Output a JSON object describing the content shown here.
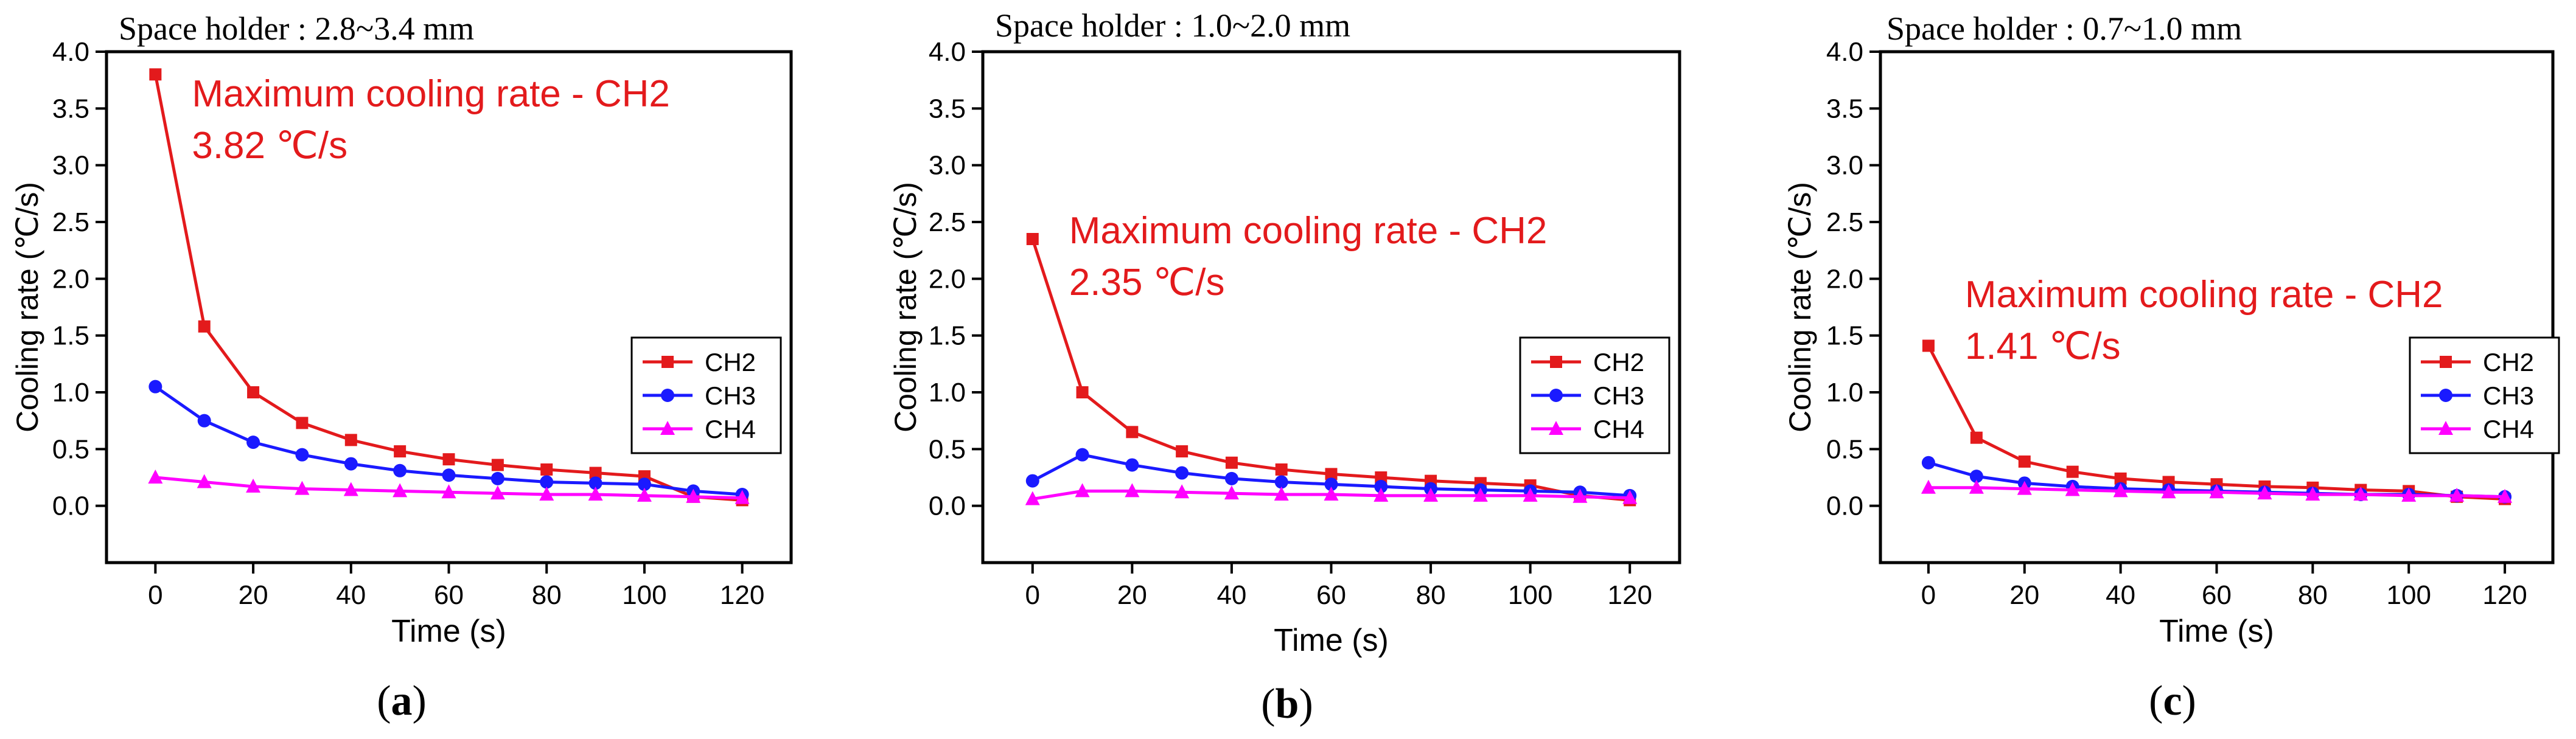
{
  "colors": {
    "CH2": "#e31a1c",
    "CH3": "#1a1aff",
    "CH4": "#ff00ff",
    "annotation": "#e31a1c",
    "axis": "#000000"
  },
  "chart_data": [
    {
      "type": "line",
      "panel_label": "a",
      "title": "Space holder : 2.8~3.4 mm",
      "xlabel": "Time (s)",
      "ylabel": "Cooling rate (℃/s)",
      "xlim": [
        -10,
        130
      ],
      "ylim": [
        -0.5,
        4.0
      ],
      "xticks": [
        0,
        20,
        40,
        60,
        80,
        100,
        120
      ],
      "xtick_labels": [
        "0",
        "20",
        "40",
        "60",
        "80",
        "100",
        "120"
      ],
      "yticks": [
        0,
        0.5,
        1,
        1.5,
        2,
        2.5,
        3,
        3.5,
        4
      ],
      "ytick_labels": [
        "0.0",
        "0.5",
        "1.0",
        "1.5",
        "2.0",
        "2.5",
        "3.0",
        "3.5",
        "4.0"
      ],
      "x": [
        0,
        10,
        20,
        30,
        40,
        50,
        60,
        70,
        80,
        90,
        100,
        110,
        120
      ],
      "series": [
        {
          "name": "CH2",
          "marker": "square",
          "values": [
            3.8,
            1.58,
            1.0,
            0.73,
            0.58,
            0.48,
            0.41,
            0.36,
            0.32,
            0.29,
            0.26,
            0.08,
            0.05
          ]
        },
        {
          "name": "CH3",
          "marker": "circle",
          "values": [
            1.05,
            0.75,
            0.56,
            0.45,
            0.37,
            0.31,
            0.27,
            0.24,
            0.21,
            0.2,
            0.19,
            0.13,
            0.1
          ]
        },
        {
          "name": "CH4",
          "marker": "triangle",
          "values": [
            0.25,
            0.21,
            0.17,
            0.15,
            0.14,
            0.13,
            0.12,
            0.11,
            0.1,
            0.1,
            0.09,
            0.08,
            0.07
          ]
        }
      ],
      "annotation": [
        "Maximum cooling rate - CH2",
        "3.82 ℃/s"
      ],
      "legend": "right"
    },
    {
      "type": "line",
      "panel_label": "b",
      "title": "Space holder : 1.0~2.0 mm",
      "xlabel": "Time (s)",
      "ylabel": "Cooling rate (℃/s)",
      "xlim": [
        -10,
        130
      ],
      "ylim": [
        -0.5,
        4.0
      ],
      "xticks": [
        0,
        20,
        40,
        60,
        80,
        100,
        120
      ],
      "xtick_labels": [
        "0",
        "20",
        "40",
        "60",
        "80",
        "100",
        "120"
      ],
      "yticks": [
        0,
        0.5,
        1,
        1.5,
        2,
        2.5,
        3,
        3.5,
        4
      ],
      "ytick_labels": [
        "0.0",
        "0.5",
        "1.0",
        "1.5",
        "2.0",
        "2.5",
        "3.0",
        "3.5",
        "4.0"
      ],
      "x": [
        0,
        10,
        20,
        30,
        40,
        50,
        60,
        70,
        80,
        90,
        100,
        110,
        120
      ],
      "series": [
        {
          "name": "CH2",
          "marker": "square",
          "values": [
            2.35,
            1.0,
            0.65,
            0.48,
            0.38,
            0.32,
            0.28,
            0.25,
            0.22,
            0.2,
            0.18,
            0.09,
            0.05
          ]
        },
        {
          "name": "CH3",
          "marker": "circle",
          "values": [
            0.22,
            0.45,
            0.36,
            0.29,
            0.24,
            0.21,
            0.19,
            0.17,
            0.15,
            0.14,
            0.13,
            0.12,
            0.09
          ]
        },
        {
          "name": "CH4",
          "marker": "triangle",
          "values": [
            0.06,
            0.13,
            0.13,
            0.12,
            0.11,
            0.1,
            0.1,
            0.09,
            0.09,
            0.09,
            0.09,
            0.08,
            0.07
          ]
        }
      ],
      "annotation": [
        "Maximum cooling rate - CH2",
        "2.35 ℃/s"
      ],
      "legend": "right"
    },
    {
      "type": "line",
      "panel_label": "c",
      "title": "Space holder : 0.7~1.0 mm",
      "xlabel": "Time (s)",
      "ylabel": "Cooling rate (℃/s)",
      "xlim": [
        -10,
        130
      ],
      "ylim": [
        -0.5,
        4.0
      ],
      "xticks": [
        0,
        20,
        40,
        60,
        80,
        100,
        120
      ],
      "xtick_labels": [
        "0",
        "20",
        "40",
        "60",
        "80",
        "100",
        "120"
      ],
      "yticks": [
        0,
        0.5,
        1,
        1.5,
        2,
        2.5,
        3,
        3.5,
        4
      ],
      "ytick_labels": [
        "0.0",
        "0.5",
        "1.0",
        "1.5",
        "2.0",
        "2.5",
        "3.0",
        "3.5",
        "4.0"
      ],
      "x": [
        0,
        10,
        20,
        30,
        40,
        50,
        60,
        70,
        80,
        90,
        100,
        110,
        120
      ],
      "series": [
        {
          "name": "CH2",
          "marker": "square",
          "values": [
            1.41,
            0.6,
            0.39,
            0.3,
            0.24,
            0.21,
            0.19,
            0.17,
            0.16,
            0.14,
            0.13,
            0.08,
            0.06
          ]
        },
        {
          "name": "CH3",
          "marker": "circle",
          "values": [
            0.38,
            0.26,
            0.2,
            0.17,
            0.15,
            0.14,
            0.13,
            0.12,
            0.11,
            0.1,
            0.1,
            0.09,
            0.08
          ]
        },
        {
          "name": "CH4",
          "marker": "triangle",
          "values": [
            0.16,
            0.16,
            0.15,
            0.14,
            0.13,
            0.12,
            0.12,
            0.11,
            0.1,
            0.1,
            0.09,
            0.09,
            0.08
          ]
        }
      ],
      "annotation": [
        "Maximum cooling rate - CH2",
        "1.41 ℃/s"
      ],
      "legend": "right"
    }
  ]
}
